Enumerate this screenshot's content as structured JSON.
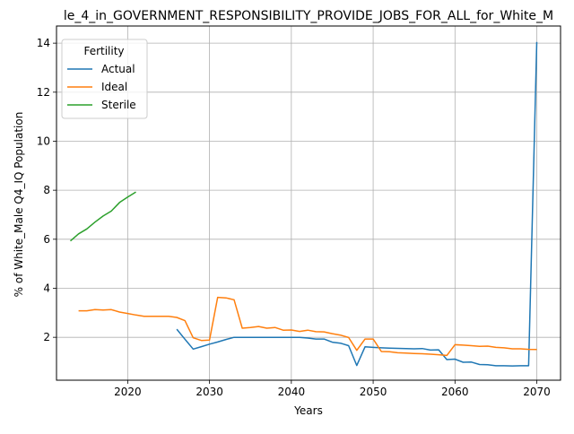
{
  "chart_data": {
    "type": "line",
    "title": "le_4_in_GOVERNMENT_RESPONSIBILITY_PROVIDE_JOBS_FOR_ALL_for_White_M",
    "xlabel": "Years",
    "ylabel": "% of White_Male Q4_IQ Population",
    "xlim": [
      2011.3,
      2072.9
    ],
    "ylim": [
      0.25,
      14.7
    ],
    "xticks": [
      2020,
      2030,
      2040,
      2050,
      2060,
      2070
    ],
    "yticks": [
      2,
      4,
      6,
      8,
      10,
      12,
      14
    ],
    "grid": true,
    "legend": {
      "title": "Fertility",
      "placement": "top-left"
    },
    "series": [
      {
        "name": "Actual",
        "color": "#1f77b4",
        "points": [
          [
            2026,
            2.33
          ],
          [
            2027,
            1.92
          ],
          [
            2028,
            1.52
          ],
          [
            2029,
            1.62
          ],
          [
            2030,
            1.72
          ],
          [
            2031,
            1.81
          ],
          [
            2032,
            1.91
          ],
          [
            2033,
            2.0
          ],
          [
            2034,
            2.0
          ],
          [
            2035,
            2.0
          ],
          [
            2036,
            2.0
          ],
          [
            2037,
            2.0
          ],
          [
            2038,
            2.0
          ],
          [
            2039,
            2.0
          ],
          [
            2040,
            2.0
          ],
          [
            2041,
            2.0
          ],
          [
            2042,
            1.97
          ],
          [
            2043,
            1.93
          ],
          [
            2044,
            1.93
          ],
          [
            2045,
            1.8
          ],
          [
            2046,
            1.76
          ],
          [
            2047,
            1.66
          ],
          [
            2048,
            0.85
          ],
          [
            2049,
            1.61
          ],
          [
            2050,
            1.59
          ],
          [
            2051,
            1.57
          ],
          [
            2052,
            1.56
          ],
          [
            2053,
            1.55
          ],
          [
            2054,
            1.54
          ],
          [
            2055,
            1.53
          ],
          [
            2056,
            1.54
          ],
          [
            2057,
            1.48
          ],
          [
            2058,
            1.49
          ],
          [
            2059,
            1.09
          ],
          [
            2060,
            1.11
          ],
          [
            2061,
            0.98
          ],
          [
            2062,
            0.99
          ],
          [
            2063,
            0.89
          ],
          [
            2064,
            0.88
          ],
          [
            2065,
            0.84
          ],
          [
            2066,
            0.84
          ],
          [
            2067,
            0.83
          ],
          [
            2068,
            0.84
          ],
          [
            2069,
            0.84
          ],
          [
            2070,
            14.05
          ]
        ]
      },
      {
        "name": "Ideal",
        "color": "#ff7f0e",
        "points": [
          [
            2014,
            3.08
          ],
          [
            2015,
            3.08
          ],
          [
            2016,
            3.13
          ],
          [
            2017,
            3.11
          ],
          [
            2018,
            3.13
          ],
          [
            2019,
            3.03
          ],
          [
            2020,
            2.97
          ],
          [
            2021,
            2.91
          ],
          [
            2022,
            2.86
          ],
          [
            2023,
            2.86
          ],
          [
            2024,
            2.86
          ],
          [
            2025,
            2.86
          ],
          [
            2026,
            2.81
          ],
          [
            2027,
            2.68
          ],
          [
            2028,
            1.98
          ],
          [
            2029,
            1.87
          ],
          [
            2030,
            1.89
          ],
          [
            2031,
            3.63
          ],
          [
            2032,
            3.61
          ],
          [
            2033,
            3.53
          ],
          [
            2034,
            2.37
          ],
          [
            2035,
            2.4
          ],
          [
            2036,
            2.44
          ],
          [
            2037,
            2.37
          ],
          [
            2038,
            2.4
          ],
          [
            2039,
            2.29
          ],
          [
            2040,
            2.3
          ],
          [
            2041,
            2.24
          ],
          [
            2042,
            2.29
          ],
          [
            2043,
            2.23
          ],
          [
            2044,
            2.22
          ],
          [
            2045,
            2.15
          ],
          [
            2046,
            2.09
          ],
          [
            2047,
            1.99
          ],
          [
            2048,
            1.47
          ],
          [
            2049,
            1.93
          ],
          [
            2050,
            1.93
          ],
          [
            2051,
            1.42
          ],
          [
            2052,
            1.41
          ],
          [
            2053,
            1.37
          ],
          [
            2054,
            1.36
          ],
          [
            2055,
            1.34
          ],
          [
            2056,
            1.33
          ],
          [
            2057,
            1.31
          ],
          [
            2058,
            1.29
          ],
          [
            2059,
            1.26
          ],
          [
            2060,
            1.7
          ],
          [
            2061,
            1.68
          ],
          [
            2062,
            1.66
          ],
          [
            2063,
            1.63
          ],
          [
            2064,
            1.64
          ],
          [
            2065,
            1.59
          ],
          [
            2066,
            1.57
          ],
          [
            2067,
            1.53
          ],
          [
            2068,
            1.53
          ],
          [
            2069,
            1.51
          ],
          [
            2070,
            1.5
          ]
        ]
      },
      {
        "name": "Sterile",
        "color": "#2ca02c",
        "points": [
          [
            2013,
            5.93
          ],
          [
            2014,
            6.22
          ],
          [
            2015,
            6.42
          ],
          [
            2016,
            6.7
          ],
          [
            2017,
            6.95
          ],
          [
            2018,
            7.15
          ],
          [
            2019,
            7.5
          ],
          [
            2020,
            7.72
          ],
          [
            2021,
            7.93
          ]
        ]
      }
    ]
  }
}
